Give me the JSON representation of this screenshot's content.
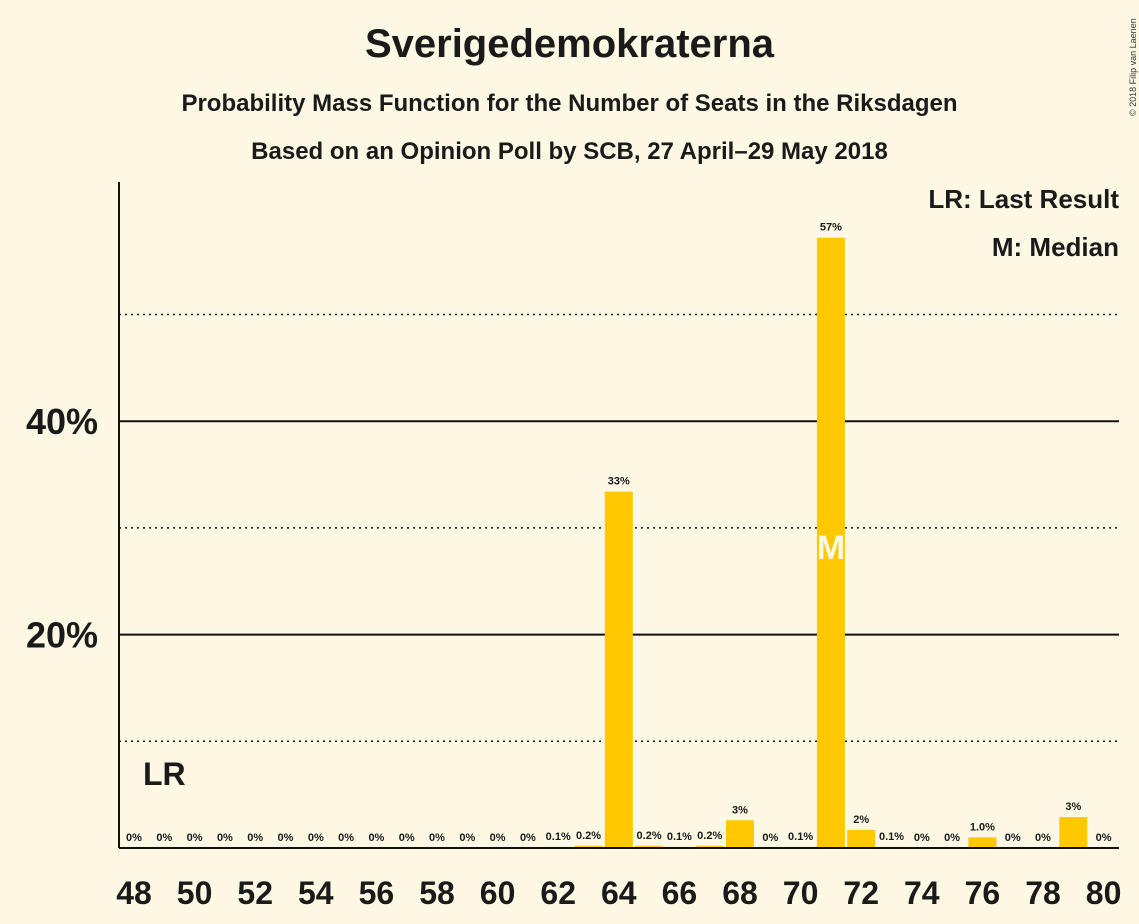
{
  "title": "Sverigedemokraterna",
  "subtitle1": "Probability Mass Function for the Number of Seats in the Riksdagen",
  "subtitle2": "Based on an Opinion Poll by SCB, 27 April–29 May 2018",
  "copyright": "© 2018 Filip van Laenen",
  "legend": {
    "last_result": "LR: Last Result",
    "median": "M: Median"
  },
  "colors": {
    "bar": "#ffc800",
    "background": "#fdf8e4"
  },
  "chart_data": {
    "type": "bar",
    "x": [
      48,
      49,
      50,
      51,
      52,
      53,
      54,
      55,
      56,
      57,
      58,
      59,
      60,
      61,
      62,
      63,
      64,
      65,
      66,
      67,
      68,
      69,
      70,
      71,
      72,
      73,
      74,
      75,
      76,
      77,
      78,
      79,
      80
    ],
    "values": [
      0,
      0,
      0,
      0,
      0,
      0,
      0,
      0,
      0,
      0,
      0,
      0,
      0,
      0,
      0.1,
      0.2,
      33.4,
      0.2,
      0.1,
      0.2,
      2.6,
      0,
      0.1,
      57.2,
      1.7,
      0.1,
      0,
      0,
      1.0,
      0,
      0,
      2.9,
      0
    ],
    "data_labels": [
      "0%",
      "0%",
      "0%",
      "0%",
      "0%",
      "0%",
      "0%",
      "0%",
      "0%",
      "0%",
      "0%",
      "0%",
      "0%",
      "0%",
      "0.1%",
      "0.2%",
      "33%",
      "0.2%",
      "0.1%",
      "0.2%",
      "3%",
      "0%",
      "0.1%",
      "57%",
      "2%",
      "0.1%",
      "0%",
      "0%",
      "1.0%",
      "0%",
      "0%",
      "3%",
      "0%"
    ],
    "x_ticks": [
      48,
      50,
      52,
      54,
      56,
      58,
      60,
      62,
      64,
      66,
      68,
      70,
      72,
      74,
      76,
      78,
      80
    ],
    "y_ticks": [
      20,
      40
    ],
    "y_tick_labels": [
      "20%",
      "40%"
    ],
    "y_minor_ticks": [
      10,
      30,
      50
    ],
    "ylim": [
      0,
      62
    ],
    "last_result": {
      "x": 49,
      "label": "LR"
    },
    "median": {
      "x": 71,
      "label": "M"
    }
  }
}
